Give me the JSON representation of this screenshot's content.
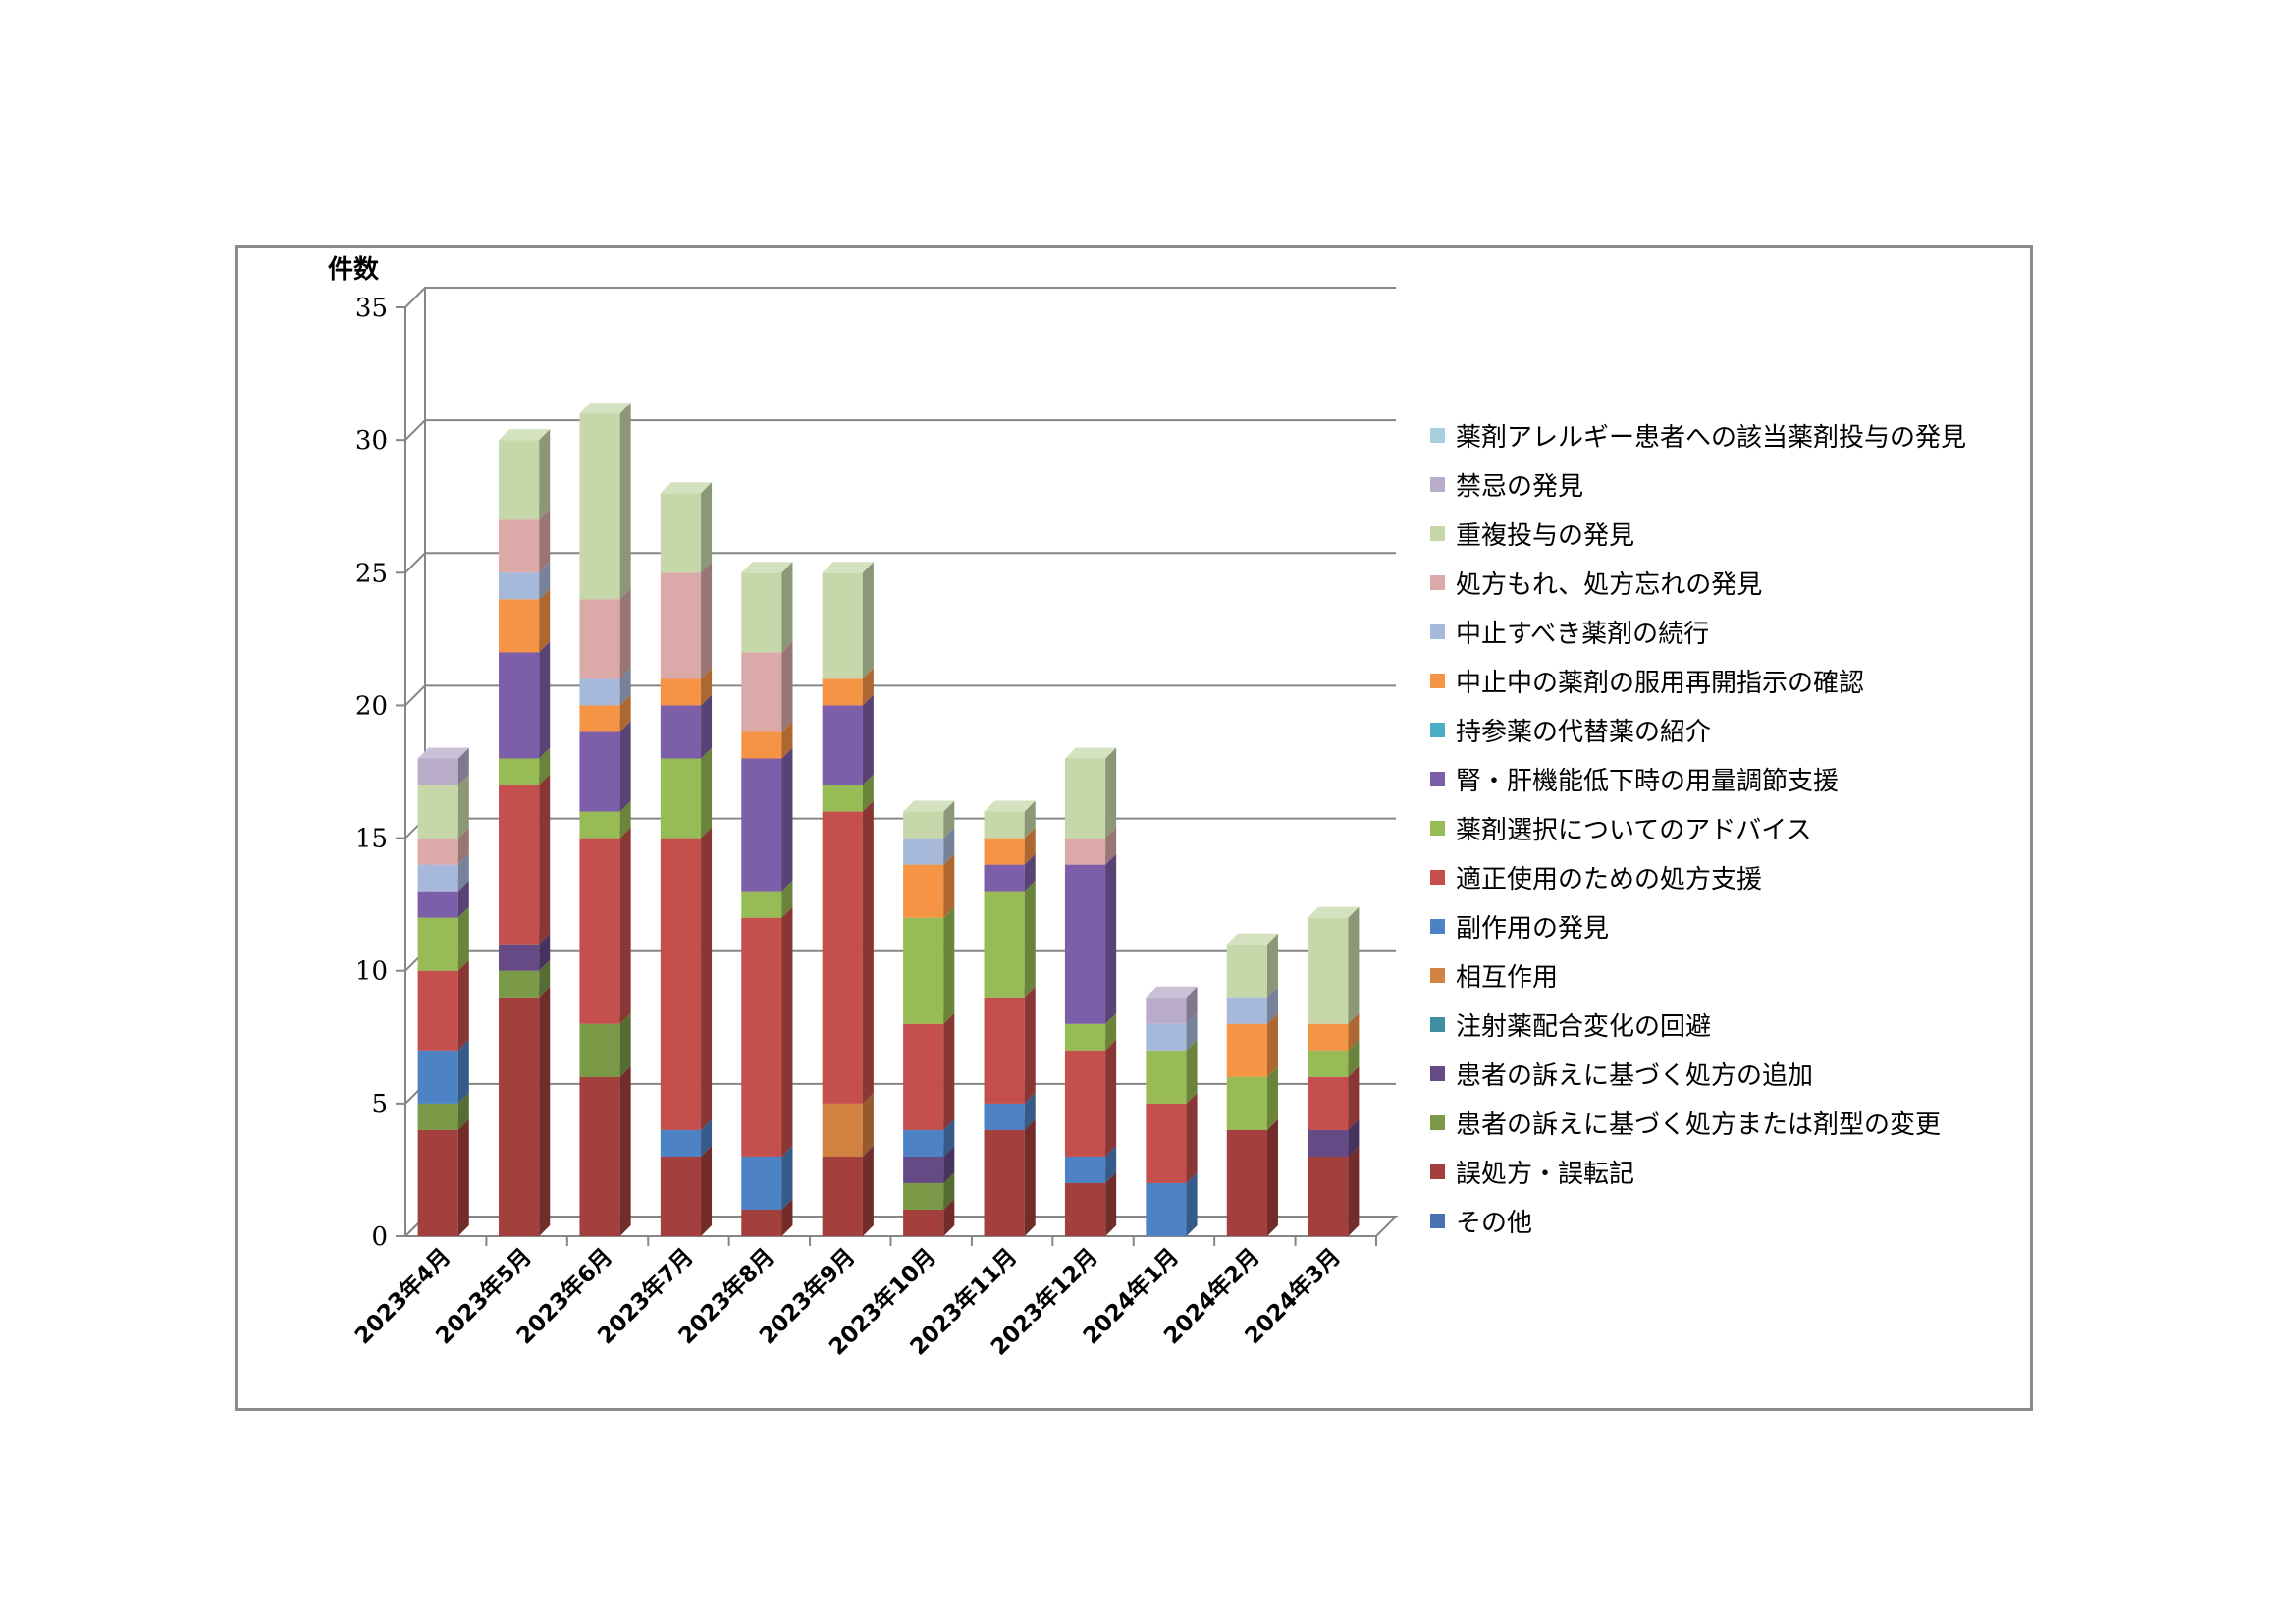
{
  "chart_data": {
    "type": "bar",
    "stacked": true,
    "three_d": true,
    "ylabel": "件数",
    "ylim": [
      0,
      35
    ],
    "yticks": [
      0,
      5,
      10,
      15,
      20,
      25,
      30,
      35
    ],
    "grid": true,
    "legend_position": "right",
    "categories": [
      "2023年4月",
      "2023年5月",
      "2023年6月",
      "2023年7月",
      "2023年8月",
      "2023年9月",
      "2023年10月",
      "2023年11月",
      "2023年12月",
      "2024年1月",
      "2024年2月",
      "2024年3月"
    ],
    "series": [
      {
        "name": "その他",
        "color": "#4a72b0",
        "values": [
          0,
          0,
          0,
          0,
          0,
          0,
          0,
          0,
          0,
          0,
          0,
          0
        ]
      },
      {
        "name": "誤処方・誤転記",
        "color": "#a33f3c",
        "values": [
          4,
          9,
          6,
          3,
          1,
          3,
          1,
          4,
          2,
          0,
          4,
          3
        ]
      },
      {
        "name": "患者の訴えに基づく処方または剤型の変更",
        "color": "#7a9a48",
        "values": [
          1,
          1,
          2,
          0,
          0,
          0,
          1,
          0,
          0,
          0,
          0,
          0
        ]
      },
      {
        "name": "患者の訴えに基づく処方の追加",
        "color": "#654a86",
        "values": [
          0,
          1,
          0,
          0,
          0,
          0,
          1,
          0,
          0,
          0,
          0,
          1
        ]
      },
      {
        "name": "注射薬配合変化の回避",
        "color": "#3f8ea2",
        "values": [
          0,
          0,
          0,
          0,
          0,
          0,
          0,
          0,
          0,
          0,
          0,
          0
        ]
      },
      {
        "name": "相互作用",
        "color": "#d28241",
        "values": [
          0,
          0,
          0,
          0,
          0,
          2,
          0,
          0,
          0,
          0,
          0,
          0
        ]
      },
      {
        "name": "副作用の発見",
        "color": "#4d82c4",
        "values": [
          2,
          0,
          0,
          1,
          2,
          0,
          1,
          1,
          1,
          2,
          0,
          0
        ]
      },
      {
        "name": "適正使用のための処方支援",
        "color": "#c44f4c",
        "values": [
          3,
          6,
          7,
          11,
          9,
          11,
          4,
          4,
          4,
          3,
          0,
          2
        ]
      },
      {
        "name": "薬剤選択についてのアドバイス",
        "color": "#98bc55",
        "values": [
          2,
          1,
          1,
          3,
          1,
          1,
          4,
          4,
          1,
          2,
          2,
          1
        ]
      },
      {
        "name": "腎・肝機能低下時の用量調節支援",
        "color": "#7d5ea8",
        "values": [
          1,
          4,
          3,
          2,
          5,
          3,
          0,
          1,
          6,
          0,
          0,
          0
        ]
      },
      {
        "name": "持参薬の代替薬の紹介",
        "color": "#4baec6",
        "values": [
          0,
          0,
          0,
          0,
          0,
          0,
          0,
          0,
          0,
          0,
          0,
          0
        ]
      },
      {
        "name": "中止中の薬剤の服用再開指示の確認",
        "color": "#f59444",
        "values": [
          0,
          2,
          1,
          1,
          1,
          1,
          2,
          1,
          0,
          0,
          2,
          1
        ]
      },
      {
        "name": "中止すべき薬剤の続行",
        "color": "#a7b9da",
        "values": [
          1,
          1,
          1,
          0,
          0,
          0,
          1,
          0,
          0,
          1,
          1,
          0
        ]
      },
      {
        "name": "処方もれ、処方忘れの発見",
        "color": "#dba9a8",
        "values": [
          1,
          2,
          3,
          4,
          3,
          0,
          0,
          0,
          1,
          0,
          0,
          0
        ]
      },
      {
        "name": "重複投与の発見",
        "color": "#c6d8a9",
        "values": [
          2,
          3,
          7,
          3,
          3,
          4,
          1,
          1,
          3,
          0,
          2,
          4
        ]
      },
      {
        "name": "禁忌の発見",
        "color": "#b9acc9",
        "values": [
          1,
          0,
          0,
          0,
          0,
          0,
          0,
          0,
          0,
          1,
          0,
          0
        ]
      },
      {
        "name": "薬剤アレルギー患者への該当薬剤投与の発見",
        "color": "#a7d0dc",
        "values": [
          0,
          0,
          0,
          0,
          0,
          0,
          0,
          0,
          0,
          0,
          0,
          0
        ]
      }
    ]
  }
}
